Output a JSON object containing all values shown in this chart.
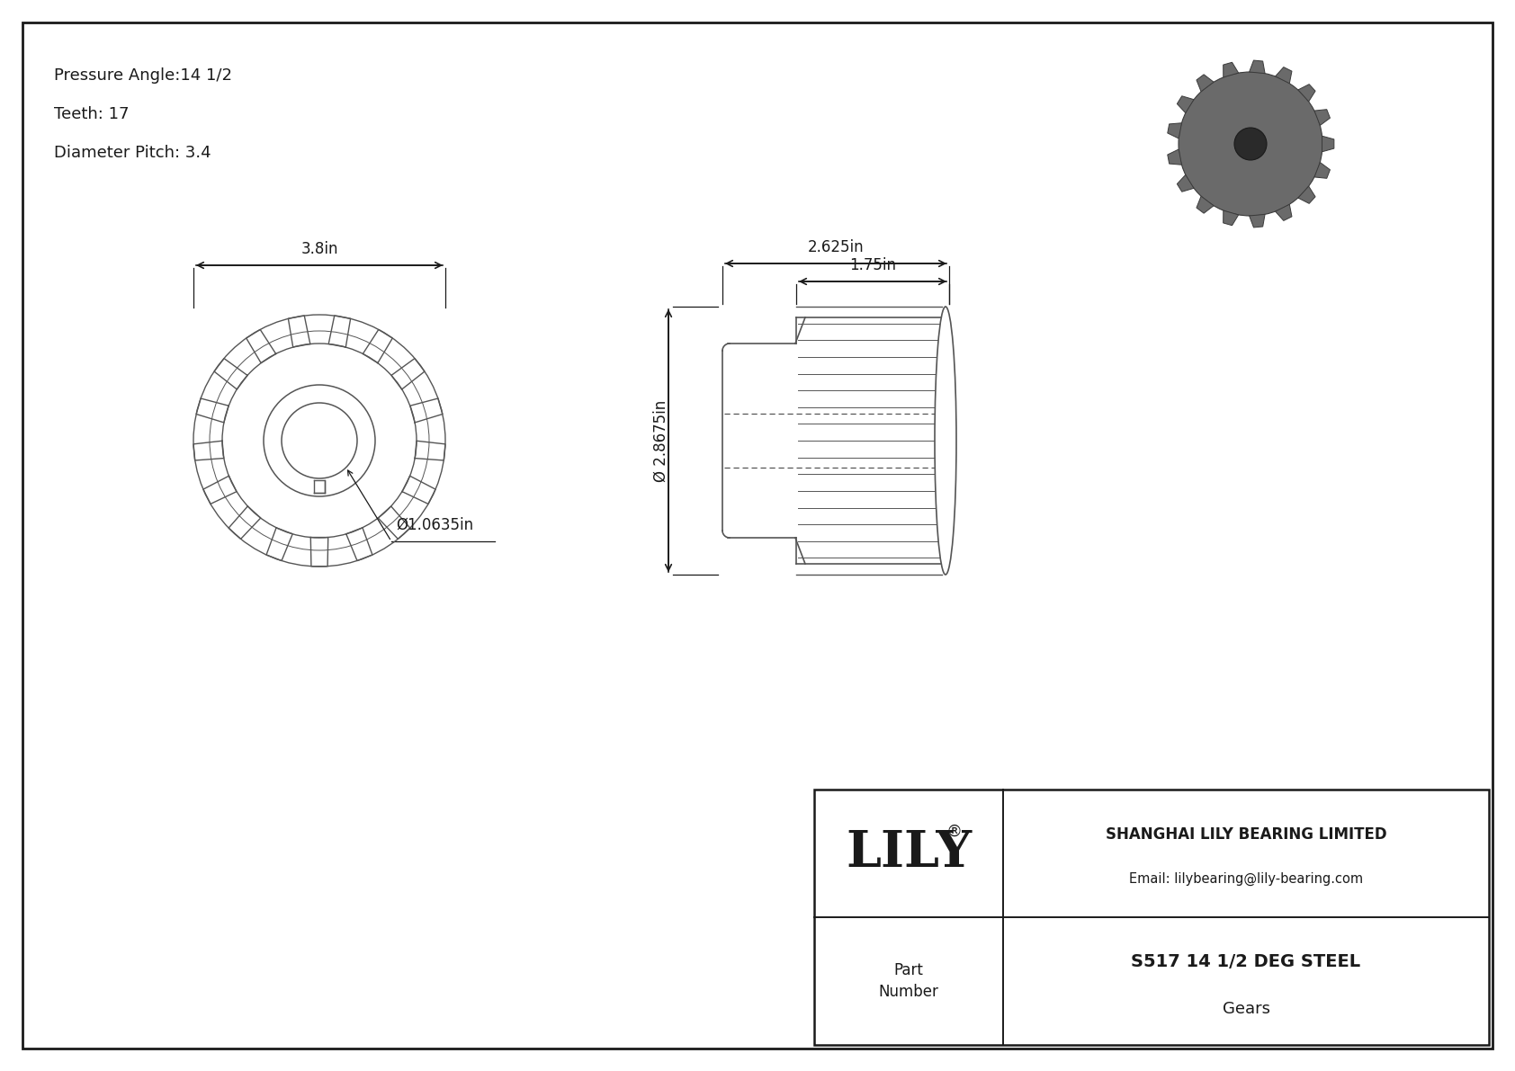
{
  "page_bg": "#ffffff",
  "line_color": "#555555",
  "dark_line": "#1a1a1a",
  "text_color": "#1a1a1a",
  "pressure_angle": "14 1/2",
  "teeth": "17",
  "diameter_pitch": "3.4",
  "dim_38": "3.8in",
  "dim_2625": "2.625in",
  "dim_175": "1.75in",
  "dim_28675": "Ø 2.8675in",
  "dim_10635": "Ø1.0635in",
  "company": "SHANGHAI LILY BEARING LIMITED",
  "email": "Email: lilybearing@lily-bearing.com",
  "part_label": "Part\nNumber",
  "part_number": "S517 14 1/2 DEG STEEL",
  "part_type": "Gears",
  "logo": "LILY",
  "logo_reg": "®",
  "num_teeth": 17,
  "gear3d_color": "#6a6a6a",
  "gear3d_edge": "#3a3a3a"
}
